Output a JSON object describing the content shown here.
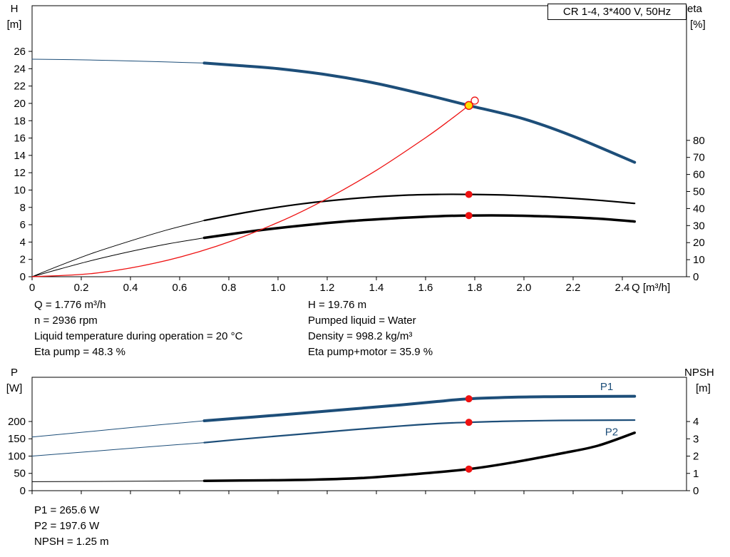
{
  "title_box": {
    "label": "CR 1-4, 3*400 V, 50Hz"
  },
  "colors": {
    "blue": "#1d4e79",
    "black": "#000000",
    "red": "#ee1111",
    "yellow": "#ffe000",
    "background": "#ffffff"
  },
  "chart_data": [
    {
      "id": "qh-eta-chart",
      "type": "line",
      "x_axis": {
        "title": "Q [m³/h]",
        "min": 0,
        "max": 2.661,
        "ticks": [
          0,
          0.2,
          0.4,
          0.6,
          0.8,
          1.0,
          1.2,
          1.4,
          1.6,
          1.8,
          2.0,
          2.2,
          2.4
        ],
        "tick_labels": [
          "0",
          "0.2",
          "0.4",
          "0.6",
          "0.8",
          "1.0",
          "1.2",
          "1.4",
          "1.6",
          "1.8",
          "2.0",
          "2.2",
          "2.4"
        ]
      },
      "left_axis": {
        "title": "H",
        "unit": "[m]",
        "min": 0,
        "max": 31.27,
        "ticks": [
          0,
          2,
          4,
          6,
          8,
          10,
          12,
          14,
          16,
          18,
          20,
          22,
          24,
          26
        ],
        "tick_labels": [
          "0",
          "2",
          "4",
          "6",
          "8",
          "10",
          "12",
          "14",
          "16",
          "18",
          "20",
          "22",
          "24",
          "26"
        ]
      },
      "right_axis": {
        "title": "eta",
        "unit": "[%]",
        "min": 0,
        "max": 159,
        "ticks": [
          0,
          10,
          20,
          30,
          40,
          50,
          60,
          70,
          80
        ],
        "tick_labels": [
          "0",
          "10",
          "20",
          "30",
          "40",
          "50",
          "60",
          "70",
          "80"
        ]
      },
      "series": [
        {
          "name": "qh-thin",
          "axis": "left",
          "color": "blue",
          "width": 1,
          "points": [
            [
              0,
              25.1
            ],
            [
              0.25,
              25.0
            ],
            [
              0.5,
              24.82
            ],
            [
              0.7,
              24.65
            ]
          ]
        },
        {
          "name": "qh",
          "axis": "left",
          "color": "blue",
          "width": 4,
          "points": [
            [
              0.7,
              24.65
            ],
            [
              0.85,
              24.35
            ],
            [
              1.0,
              24.0
            ],
            [
              1.2,
              23.3
            ],
            [
              1.4,
              22.3
            ],
            [
              1.6,
              21.0
            ],
            [
              1.776,
              19.76
            ],
            [
              2.0,
              18.2
            ],
            [
              2.2,
              16.2
            ],
            [
              2.45,
              13.2
            ]
          ]
        },
        {
          "name": "eta-pump-thin",
          "axis": "right",
          "color": "black",
          "width": 1,
          "points": [
            [
              0,
              0
            ],
            [
              0.12,
              7
            ],
            [
              0.25,
              14
            ],
            [
              0.4,
              21
            ],
            [
              0.55,
              27.5
            ],
            [
              0.7,
              33
            ]
          ]
        },
        {
          "name": "eta-pump",
          "axis": "right",
          "color": "black",
          "width": 2.2,
          "points": [
            [
              0.7,
              33
            ],
            [
              0.9,
              38.5
            ],
            [
              1.1,
              42.8
            ],
            [
              1.3,
              45.8
            ],
            [
              1.5,
              47.7
            ],
            [
              1.65,
              48.3
            ],
            [
              1.776,
              48.3
            ],
            [
              1.95,
              47.8
            ],
            [
              2.15,
              46.4
            ],
            [
              2.3,
              44.9
            ],
            [
              2.45,
              43.0
            ]
          ]
        },
        {
          "name": "eta-pump-motor-thin",
          "axis": "right",
          "color": "black",
          "width": 1,
          "points": [
            [
              0,
              0
            ],
            [
              0.12,
              4.8
            ],
            [
              0.25,
              9.8
            ],
            [
              0.4,
              14.8
            ],
            [
              0.55,
              19.2
            ],
            [
              0.7,
              22.8
            ]
          ]
        },
        {
          "name": "eta-pump-motor",
          "axis": "right",
          "color": "black",
          "width": 3.5,
          "points": [
            [
              0.7,
              22.8
            ],
            [
              0.9,
              26.8
            ],
            [
              1.1,
              30.1
            ],
            [
              1.3,
              32.7
            ],
            [
              1.5,
              34.5
            ],
            [
              1.65,
              35.5
            ],
            [
              1.776,
              35.9
            ],
            [
              1.95,
              35.9
            ],
            [
              2.15,
              35.1
            ],
            [
              2.3,
              34.1
            ],
            [
              2.45,
              32.4
            ]
          ]
        },
        {
          "name": "system-curve",
          "axis": "left",
          "color": "red",
          "width": 1.3,
          "points": [
            [
              0,
              0
            ],
            [
              0.25,
              0.39
            ],
            [
              0.5,
              1.57
            ],
            [
              0.75,
              3.52
            ],
            [
              1.0,
              6.26
            ],
            [
              1.2,
              9.02
            ],
            [
              1.4,
              12.28
            ],
            [
              1.6,
              16.04
            ],
            [
              1.7,
              18.1
            ],
            [
              1.776,
              19.76
            ],
            [
              1.8,
              20.29
            ]
          ]
        }
      ],
      "markers": [
        {
          "name": "max-flow-point",
          "style": "open",
          "axis": "left",
          "q": 1.8,
          "value": 20.32
        },
        {
          "name": "eta-pump-point",
          "style": "dot",
          "axis": "right",
          "q": 1.776,
          "value": 48.3
        },
        {
          "name": "eta-pump-motor-point",
          "style": "dot",
          "axis": "right",
          "q": 1.776,
          "value": 35.9
        },
        {
          "name": "duty-point",
          "style": "duty",
          "axis": "left",
          "q": 1.776,
          "value": 19.76
        }
      ]
    },
    {
      "id": "power-npsh-chart",
      "type": "line",
      "x_axis": {
        "title": "",
        "min": 0,
        "max": 2.661,
        "ticks": [
          0,
          0.2,
          0.4,
          0.6,
          0.8,
          1.0,
          1.2,
          1.4,
          1.6,
          1.8,
          2.0,
          2.2,
          2.4
        ],
        "tick_labels": []
      },
      "left_axis": {
        "title": "P",
        "unit": "[W]",
        "min": 0,
        "max": 327.8,
        "ticks": [
          0,
          50,
          100,
          150,
          200
        ],
        "tick_labels": [
          "0",
          "50",
          "100",
          "150",
          "200"
        ]
      },
      "right_axis": {
        "title": "NPSH",
        "unit": "[m]",
        "min": 0,
        "max": 6.56,
        "ticks": [
          0,
          1,
          2,
          3,
          4
        ],
        "tick_labels": [
          "0",
          "1",
          "2",
          "3",
          "4"
        ]
      },
      "series": [
        {
          "name": "p1-thin",
          "axis": "left",
          "color": "blue",
          "width": 1,
          "points": [
            [
              0,
              155
            ],
            [
              0.25,
              172
            ],
            [
              0.5,
              189
            ],
            [
              0.7,
              202
            ]
          ]
        },
        {
          "name": "p1",
          "axis": "left",
          "color": "blue",
          "width": 4,
          "label": "P1",
          "label_at": [
            2.31,
            291
          ],
          "points": [
            [
              0.7,
              202
            ],
            [
              0.9,
              213
            ],
            [
              1.1,
              224
            ],
            [
              1.3,
              236
            ],
            [
              1.5,
              248
            ],
            [
              1.65,
              258
            ],
            [
              1.776,
              265.6
            ],
            [
              1.95,
              270
            ],
            [
              2.15,
              272
            ],
            [
              2.45,
              273
            ]
          ]
        },
        {
          "name": "p2-thin",
          "axis": "left",
          "color": "blue",
          "width": 1,
          "points": [
            [
              0,
              100
            ],
            [
              0.25,
              114
            ],
            [
              0.5,
              128
            ],
            [
              0.7,
              139
            ]
          ]
        },
        {
          "name": "p2",
          "axis": "left",
          "color": "blue",
          "width": 2.2,
          "label": "P2",
          "label_at": [
            2.33,
            160
          ],
          "points": [
            [
              0.7,
              139
            ],
            [
              0.9,
              152
            ],
            [
              1.1,
              164
            ],
            [
              1.3,
              176
            ],
            [
              1.5,
              187
            ],
            [
              1.65,
              194
            ],
            [
              1.776,
              197.6
            ],
            [
              1.95,
              201
            ],
            [
              2.15,
              203
            ],
            [
              2.45,
              204
            ]
          ]
        },
        {
          "name": "npsh-thin",
          "axis": "right",
          "color": "black",
          "width": 1,
          "points": [
            [
              0,
              0.52
            ],
            [
              0.35,
              0.54
            ],
            [
              0.7,
              0.57
            ]
          ]
        },
        {
          "name": "npsh",
          "axis": "right",
          "color": "black",
          "width": 3.5,
          "points": [
            [
              0.7,
              0.57
            ],
            [
              0.95,
              0.6
            ],
            [
              1.15,
              0.64
            ],
            [
              1.35,
              0.74
            ],
            [
              1.55,
              0.95
            ],
            [
              1.776,
              1.25
            ],
            [
              1.95,
              1.62
            ],
            [
              2.15,
              2.15
            ],
            [
              2.3,
              2.6
            ],
            [
              2.45,
              3.35
            ]
          ]
        }
      ],
      "markers": [
        {
          "name": "p1-point",
          "style": "dot",
          "axis": "left",
          "q": 1.776,
          "value": 265.6
        },
        {
          "name": "p2-point",
          "style": "dot",
          "axis": "left",
          "q": 1.776,
          "value": 197.6
        },
        {
          "name": "npsh-point",
          "style": "dot",
          "axis": "right",
          "q": 1.776,
          "value": 1.25
        }
      ]
    }
  ],
  "operating_text": {
    "left": [
      "Q = 1.776 m³/h",
      "n = 2936 rpm",
      "Liquid temperature during operation = 20 °C",
      "Eta pump = 48.3 %"
    ],
    "right": [
      "H = 19.76 m",
      "Pumped liquid = Water",
      "Density = 998.2 kg/m³",
      "Eta pump+motor = 35.9 %"
    ]
  },
  "result_text": [
    "P1 = 265.6 W",
    "P2 = 197.6 W",
    "NPSH = 1.25 m"
  ]
}
